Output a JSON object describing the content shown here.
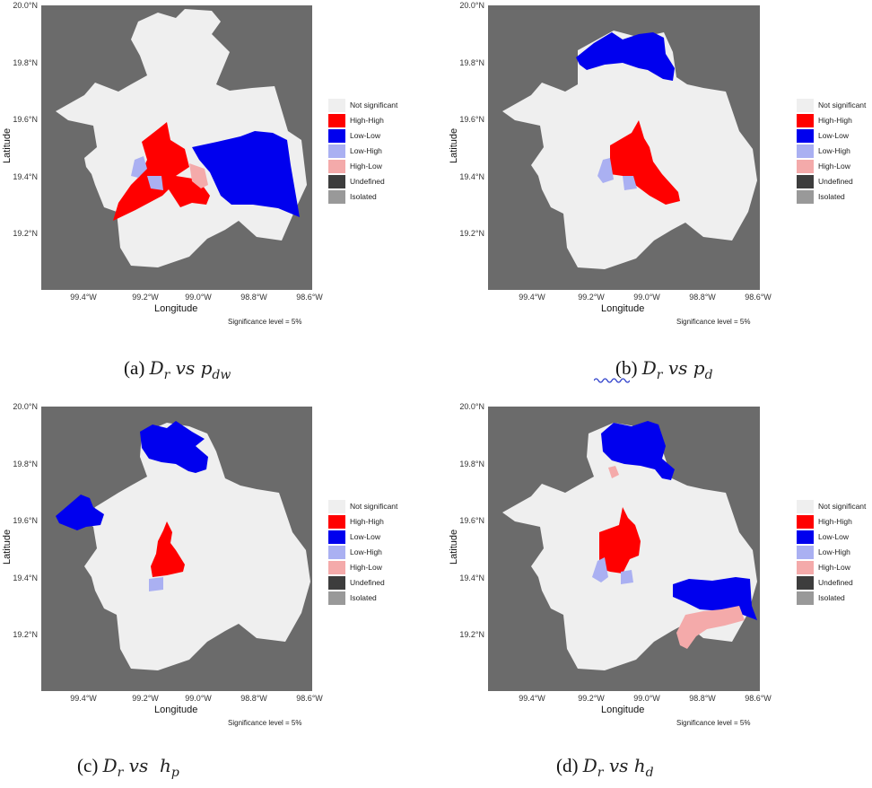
{
  "legend": [
    {
      "label": "Not significant",
      "color": "#efefef"
    },
    {
      "label": "High-High",
      "color": "#ff0000"
    },
    {
      "label": "Low-Low",
      "color": "#0000ee"
    },
    {
      "label": "Low-High",
      "color": "#aab0f2"
    },
    {
      "label": "High-Low",
      "color": "#f4aaaa"
    },
    {
      "label": "Undefined",
      "color": "#3d3d3d"
    },
    {
      "label": "Isolated",
      "color": "#999999"
    }
  ],
  "axes": {
    "xlabel": "Longitude",
    "ylabel": "Latitude",
    "xticks": [
      "99.4°W",
      "99.2°W",
      "99.0°W",
      "98.8°W",
      "98.6°W"
    ],
    "yticks": [
      "20.0°N",
      "19.8°N",
      "19.6°N",
      "19.4°N",
      "19.2°N"
    ]
  },
  "significance": "Significance level = 5%",
  "panels": [
    {
      "id": "a",
      "caption_prefix": "(a) ",
      "var": "D",
      "var_sub": "r",
      "vs": " vs ",
      "target": "p",
      "target_sub": "dw"
    },
    {
      "id": "b",
      "caption_prefix": "(b) ",
      "var": "D",
      "var_sub": "r",
      "vs": " vs ",
      "target": "p",
      "target_sub": "d"
    },
    {
      "id": "c",
      "caption_prefix": "(c) ",
      "var": "D",
      "var_sub": "r",
      "vs": " vs  ",
      "target": "h",
      "target_sub": "p"
    },
    {
      "id": "d",
      "caption_prefix": "(d) ",
      "var": "D",
      "var_sub": "r",
      "vs": " vs ",
      "target": "h",
      "target_sub": "d"
    }
  ],
  "colors": {
    "background": "#6b6b6b",
    "region": "#efefef"
  }
}
